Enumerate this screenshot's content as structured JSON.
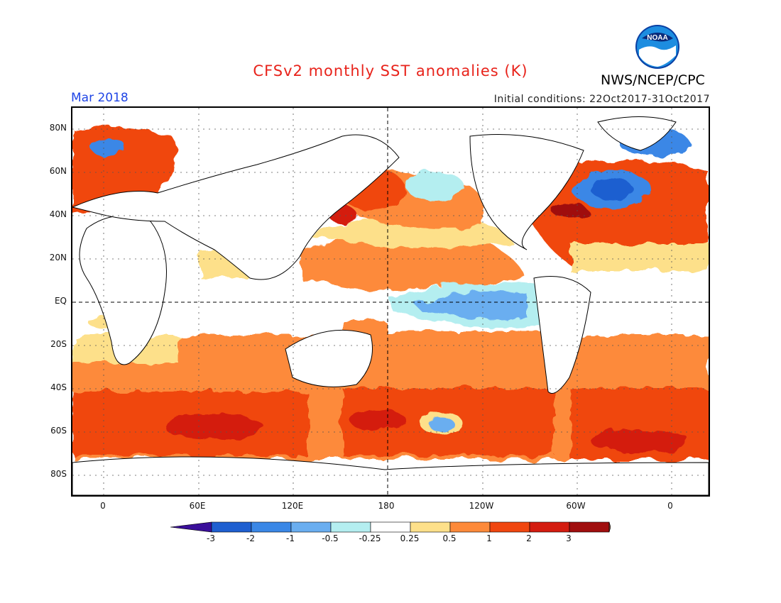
{
  "header": {
    "title": "CFSv2 monthly SST anomalies (K)",
    "agency": "NWS/NCEP/CPC",
    "logo_text": "NOAA",
    "month": "Mar 2018",
    "initial_conditions": "Initial conditions: 22Oct2017-31Oct2017"
  },
  "axes": {
    "lat_labels": [
      "80N",
      "60N",
      "40N",
      "20N",
      "EQ",
      "20S",
      "40S",
      "60S",
      "80S"
    ],
    "lon_labels": [
      "0",
      "60E",
      "120E",
      "180",
      "120W",
      "60W",
      "0"
    ]
  },
  "colorbar": {
    "labels": [
      "-3",
      "-2",
      "-1",
      "-0.5",
      "-0.25",
      "0.25",
      "0.5",
      "1",
      "2",
      "3"
    ],
    "colors": [
      "#3a0f9a",
      "#1e5fd0",
      "#3a87e6",
      "#6aaef0",
      "#b4eef0",
      "#ffffff",
      "#fde08a",
      "#fd8a3a",
      "#f0460f",
      "#d41c10",
      "#a00e0e",
      "#7d5440"
    ]
  },
  "palette": {
    "title_color": "#e8231b",
    "month_color": "#1f45e6",
    "ocean_positive": "#fd6e10",
    "ocean_strong": "#e8280c"
  }
}
